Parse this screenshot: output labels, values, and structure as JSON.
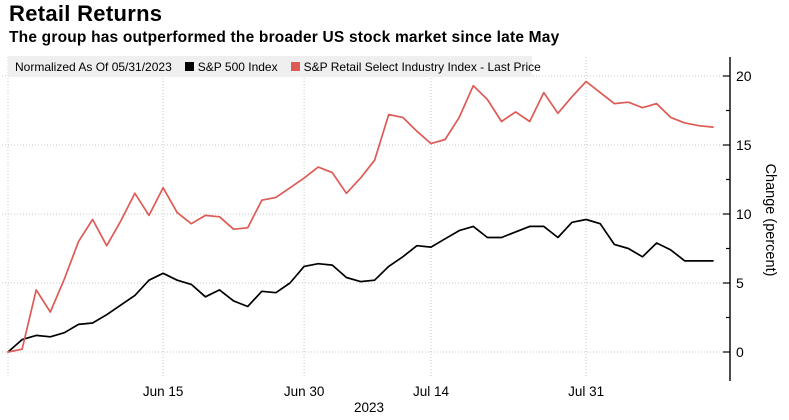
{
  "header": {
    "title": "Retail Returns",
    "subtitle": "The group has outperformed the broader US stock market since late May"
  },
  "legend": {
    "note": "Normalized As Of 05/31/2023",
    "series": [
      {
        "label": "S&P 500 Index",
        "color": "#000000"
      },
      {
        "label": "S&P Retail Select Industry Index - Last Price",
        "color": "#de5a55"
      }
    ]
  },
  "chart_data": {
    "type": "line",
    "title": "Retail Returns",
    "subtitle": "The group has outperformed the broader US stock market since late May",
    "ylabel": "Change (percent)",
    "x_axis_year": "2023",
    "ylim": [
      -0.5,
      21
    ],
    "y_major_ticks": [
      0,
      5,
      10,
      15,
      20
    ],
    "y_minor_ticks": [
      2.5,
      7.5,
      12.5,
      17.5
    ],
    "grid": true,
    "legend_position": "top",
    "x": [
      "May 31",
      "Jun 1",
      "Jun 2",
      "Jun 5",
      "Jun 6",
      "Jun 7",
      "Jun 8",
      "Jun 9",
      "Jun 12",
      "Jun 13",
      "Jun 14",
      "Jun 15",
      "Jun 16",
      "Jun 20",
      "Jun 21",
      "Jun 22",
      "Jun 23",
      "Jun 26",
      "Jun 27",
      "Jun 28",
      "Jun 29",
      "Jun 30",
      "Jul 3",
      "Jul 5",
      "Jul 6",
      "Jul 7",
      "Jul 10",
      "Jul 11",
      "Jul 12",
      "Jul 13",
      "Jul 14",
      "Jul 17",
      "Jul 18",
      "Jul 19",
      "Jul 20",
      "Jul 21",
      "Jul 24",
      "Jul 25",
      "Jul 26",
      "Jul 27",
      "Jul 28",
      "Jul 31",
      "Aug 1",
      "Aug 2",
      "Aug 3",
      "Aug 4",
      "Aug 7",
      "Aug 8",
      "Aug 9",
      "Aug 10",
      "Aug 11"
    ],
    "x_ticks": [
      {
        "index": 11,
        "label": "Jun 15"
      },
      {
        "index": 21,
        "label": "Jun 30"
      },
      {
        "index": 30,
        "label": "Jul 14"
      },
      {
        "index": 41,
        "label": "Jul 31"
      }
    ],
    "series": [
      {
        "name": "S&P 500 Index",
        "color": "#000000",
        "values": [
          0.0,
          0.9,
          1.2,
          1.1,
          1.4,
          2.0,
          2.1,
          2.7,
          3.4,
          4.1,
          5.2,
          5.7,
          5.2,
          4.9,
          4.0,
          4.5,
          3.7,
          3.3,
          4.4,
          4.3,
          5.0,
          6.2,
          6.4,
          6.3,
          5.4,
          5.1,
          5.2,
          6.2,
          6.9,
          7.7,
          7.6,
          8.2,
          8.8,
          9.1,
          8.3,
          8.3,
          8.7,
          9.1,
          9.1,
          8.3,
          9.4,
          9.6,
          9.3,
          7.8,
          7.5,
          6.9,
          7.9,
          7.4,
          6.6,
          6.6,
          6.6
        ]
      },
      {
        "name": "S&P Retail Select Industry Index - Last Price",
        "color": "#de5a55",
        "values": [
          0.0,
          0.2,
          4.5,
          2.9,
          5.3,
          8.0,
          9.6,
          7.7,
          9.5,
          11.5,
          9.9,
          11.9,
          10.1,
          9.3,
          9.9,
          9.8,
          8.9,
          9.0,
          11.0,
          11.2,
          11.9,
          12.6,
          13.4,
          13.0,
          11.5,
          12.6,
          13.9,
          17.2,
          17.0,
          16.0,
          15.1,
          15.4,
          17.0,
          19.3,
          18.3,
          16.7,
          17.4,
          16.7,
          18.8,
          17.3,
          18.5,
          19.6,
          18.8,
          18.0,
          18.1,
          17.7,
          18.0,
          17.0,
          16.6,
          16.4,
          16.3
        ]
      }
    ]
  }
}
